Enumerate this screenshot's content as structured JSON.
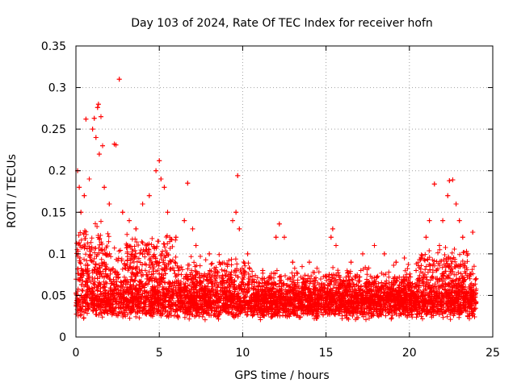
{
  "chart_data": {
    "type": "scatter",
    "title": "Day 103 of 2024, Rate Of TEC Index for receiver hofn",
    "xlabel": "GPS time / hours",
    "ylabel": "ROTI / TECUs",
    "xlim": [
      0,
      25
    ],
    "ylim": [
      0,
      0.35
    ],
    "x_ticks": [
      0,
      5,
      10,
      15,
      20,
      25
    ],
    "x_tick_labels": [
      "0",
      "5",
      "10",
      "15",
      "20",
      "25"
    ],
    "y_ticks": [
      0,
      0.05,
      0.1,
      0.15,
      0.2,
      0.25,
      0.3,
      0.35
    ],
    "y_tick_labels": [
      "0",
      "0.05",
      "0.1",
      "0.15",
      "0.2",
      "0.25",
      "0.3",
      "0.35"
    ],
    "grid": true,
    "marker": "+",
    "color": "#ff0000",
    "x_range_of_data": [
      0,
      24
    ],
    "density_note": "dense cloud ~0.02-0.06 throughout the day",
    "series": [
      {
        "name": "ROTI",
        "points": [
          [
            0.1,
            0.2
          ],
          [
            0.2,
            0.18
          ],
          [
            0.3,
            0.15
          ],
          [
            0.5,
            0.17
          ],
          [
            0.6,
            0.262
          ],
          [
            0.8,
            0.19
          ],
          [
            1.0,
            0.25
          ],
          [
            1.1,
            0.263
          ],
          [
            1.2,
            0.24
          ],
          [
            1.3,
            0.276
          ],
          [
            1.35,
            0.28
          ],
          [
            1.4,
            0.22
          ],
          [
            1.5,
            0.265
          ],
          [
            1.6,
            0.23
          ],
          [
            1.7,
            0.18
          ],
          [
            2.0,
            0.16
          ],
          [
            2.3,
            0.232
          ],
          [
            2.4,
            0.231
          ],
          [
            2.6,
            0.31
          ],
          [
            2.8,
            0.15
          ],
          [
            3.2,
            0.14
          ],
          [
            3.6,
            0.13
          ],
          [
            4.0,
            0.16
          ],
          [
            4.4,
            0.17
          ],
          [
            4.8,
            0.2
          ],
          [
            5.0,
            0.212
          ],
          [
            5.1,
            0.19
          ],
          [
            5.3,
            0.18
          ],
          [
            5.5,
            0.15
          ],
          [
            6.0,
            0.12
          ],
          [
            6.5,
            0.14
          ],
          [
            6.7,
            0.185
          ],
          [
            7.0,
            0.13
          ],
          [
            7.2,
            0.11
          ],
          [
            8.0,
            0.1
          ],
          [
            8.6,
            0.09
          ],
          [
            9.4,
            0.14
          ],
          [
            9.6,
            0.15
          ],
          [
            9.7,
            0.194
          ],
          [
            9.8,
            0.13
          ],
          [
            10.3,
            0.1
          ],
          [
            11.2,
            0.08
          ],
          [
            12.0,
            0.12
          ],
          [
            12.2,
            0.136
          ],
          [
            12.5,
            0.12
          ],
          [
            13.0,
            0.09
          ],
          [
            14.0,
            0.09
          ],
          [
            15.3,
            0.12
          ],
          [
            15.4,
            0.13
          ],
          [
            15.6,
            0.11
          ],
          [
            16.5,
            0.09
          ],
          [
            17.2,
            0.1
          ],
          [
            17.9,
            0.11
          ],
          [
            18.5,
            0.1
          ],
          [
            19.2,
            0.09
          ],
          [
            19.7,
            0.095
          ],
          [
            20.4,
            0.08
          ],
          [
            21.0,
            0.12
          ],
          [
            21.2,
            0.14
          ],
          [
            21.5,
            0.184
          ],
          [
            21.8,
            0.11
          ],
          [
            22.0,
            0.14
          ],
          [
            22.3,
            0.17
          ],
          [
            22.4,
            0.188
          ],
          [
            22.6,
            0.189
          ],
          [
            22.8,
            0.16
          ],
          [
            23.0,
            0.14
          ],
          [
            23.2,
            0.12
          ],
          [
            23.5,
            0.1
          ],
          [
            23.8,
            0.126
          ],
          [
            24.0,
            0.07
          ]
        ]
      }
    ]
  }
}
